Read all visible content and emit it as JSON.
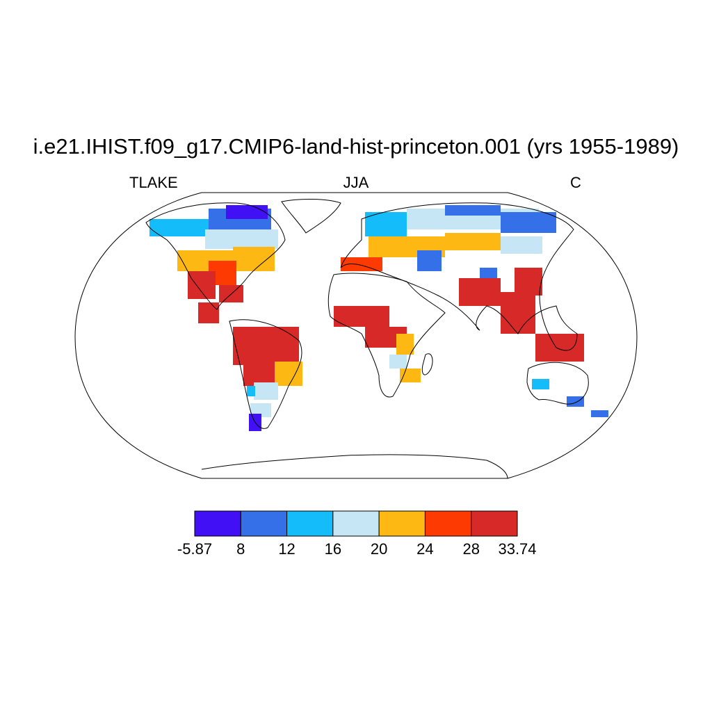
{
  "title": "i.e21.IHIST.f09_g17.CMIP6-land-hist-princeton.001 (yrs 1955-1989)",
  "left_string": "TLAKE",
  "center_string": "JJA",
  "right_string": "C",
  "colorbar": {
    "labels": [
      "-5.87",
      "8",
      "12",
      "16",
      "20",
      "24",
      "28",
      "33.74"
    ],
    "colors": [
      "#4210f5",
      "#3570e8",
      "#14bdf9",
      "#c6e6f5",
      "#fdb813",
      "#fe3a03",
      "#d62928"
    ]
  },
  "map": {
    "projection": "Robinson",
    "coastline_color": "#000000",
    "ocean_color": "#ffffff"
  }
}
